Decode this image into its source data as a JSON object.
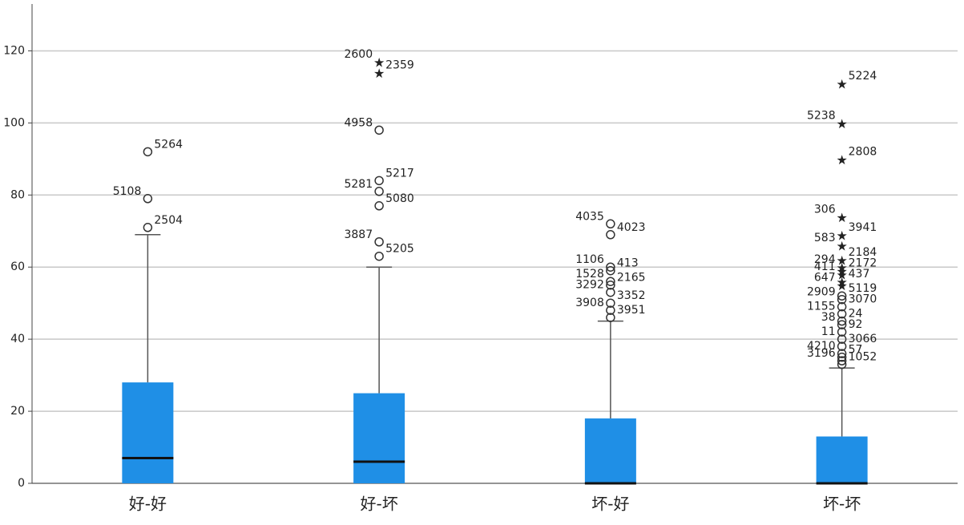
{
  "chart_data": {
    "type": "boxplot",
    "categories": [
      "好-好",
      "好-坏",
      "坏-好",
      "坏-坏"
    ],
    "min": [
      0,
      0,
      0,
      0
    ],
    "q1": [
      0,
      0,
      0,
      0
    ],
    "median": [
      7,
      6,
      0,
      0
    ],
    "q3": [
      28,
      25,
      18,
      13
    ],
    "max": [
      69,
      60,
      45,
      32
    ],
    "outliers": [
      [
        {
          "value": 71,
          "label": "2504",
          "marker": "circle"
        },
        {
          "value": 79,
          "label": "5108",
          "marker": "circle"
        },
        {
          "value": 92,
          "label": "5264",
          "marker": "circle"
        }
      ],
      [
        {
          "value": 63,
          "label": "5205",
          "marker": "circle"
        },
        {
          "value": 67,
          "label": "3887",
          "marker": "circle"
        },
        {
          "value": 77,
          "label": "5080",
          "marker": "circle"
        },
        {
          "value": 81,
          "label": "5281",
          "marker": "circle"
        },
        {
          "value": 84,
          "label": "5217",
          "marker": "circle"
        },
        {
          "value": 98,
          "label": "4958",
          "marker": "circle"
        },
        {
          "value": 114,
          "label": "2359",
          "marker": "star"
        },
        {
          "value": 117,
          "label": "2600",
          "marker": "star"
        }
      ],
      [
        {
          "value": 46,
          "label": "3951",
          "marker": "circle"
        },
        {
          "value": 48,
          "label": "3908",
          "marker": "circle"
        },
        {
          "value": 50,
          "label": "3352",
          "marker": "circle"
        },
        {
          "value": 53,
          "label": "3292",
          "marker": "circle"
        },
        {
          "value": 55,
          "label": "2165",
          "marker": "circle"
        },
        {
          "value": 56,
          "label": "1528",
          "marker": "circle"
        },
        {
          "value": 59,
          "label": "413",
          "marker": "circle"
        },
        {
          "value": 60,
          "label": "1106",
          "marker": "circle"
        },
        {
          "value": 69,
          "label": "4023",
          "marker": "circle"
        },
        {
          "value": 72,
          "label": "4035",
          "marker": "circle"
        }
      ],
      [
        {
          "value": 33,
          "label": "1052",
          "marker": "circle"
        },
        {
          "value": 34,
          "label": "3196",
          "marker": "circle"
        },
        {
          "value": 35,
          "label": "57",
          "marker": "circle"
        },
        {
          "value": 36,
          "label": "4210",
          "marker": "circle"
        },
        {
          "value": 38,
          "label": "3066",
          "marker": "circle"
        },
        {
          "value": 40,
          "label": "11",
          "marker": "circle"
        },
        {
          "value": 42,
          "label": "92",
          "marker": "circle"
        },
        {
          "value": 44,
          "label": "38",
          "marker": "circle"
        },
        {
          "value": 45,
          "label": "24",
          "marker": "circle"
        },
        {
          "value": 47,
          "label": "1155",
          "marker": "circle"
        },
        {
          "value": 49,
          "label": "3070",
          "marker": "circle"
        },
        {
          "value": 51,
          "label": "2909",
          "marker": "circle"
        },
        {
          "value": 52,
          "label": "5119",
          "marker": "circle"
        },
        {
          "value": 55,
          "label": "647",
          "marker": "star"
        },
        {
          "value": 56,
          "label": "437",
          "marker": "star"
        },
        {
          "value": 58,
          "label": "411",
          "marker": "star"
        },
        {
          "value": 59,
          "label": "2172",
          "marker": "star"
        },
        {
          "value": 60,
          "label": "294",
          "marker": "star"
        },
        {
          "value": 62,
          "label": "2184",
          "marker": "star"
        },
        {
          "value": 66,
          "label": "583",
          "marker": "star"
        },
        {
          "value": 69,
          "label": "3941",
          "marker": "star"
        },
        {
          "value": 74,
          "label": "306",
          "marker": "star"
        },
        {
          "value": 90,
          "label": "2808",
          "marker": "star"
        },
        {
          "value": 100,
          "label": "5238",
          "marker": "star"
        },
        {
          "value": 111,
          "label": "5224",
          "marker": "star"
        }
      ]
    ],
    "color": "#1f8fe6",
    "ylim": [
      0,
      133
    ],
    "yticks": [
      0,
      20,
      40,
      60,
      80,
      100,
      120
    ],
    "grid": true
  }
}
